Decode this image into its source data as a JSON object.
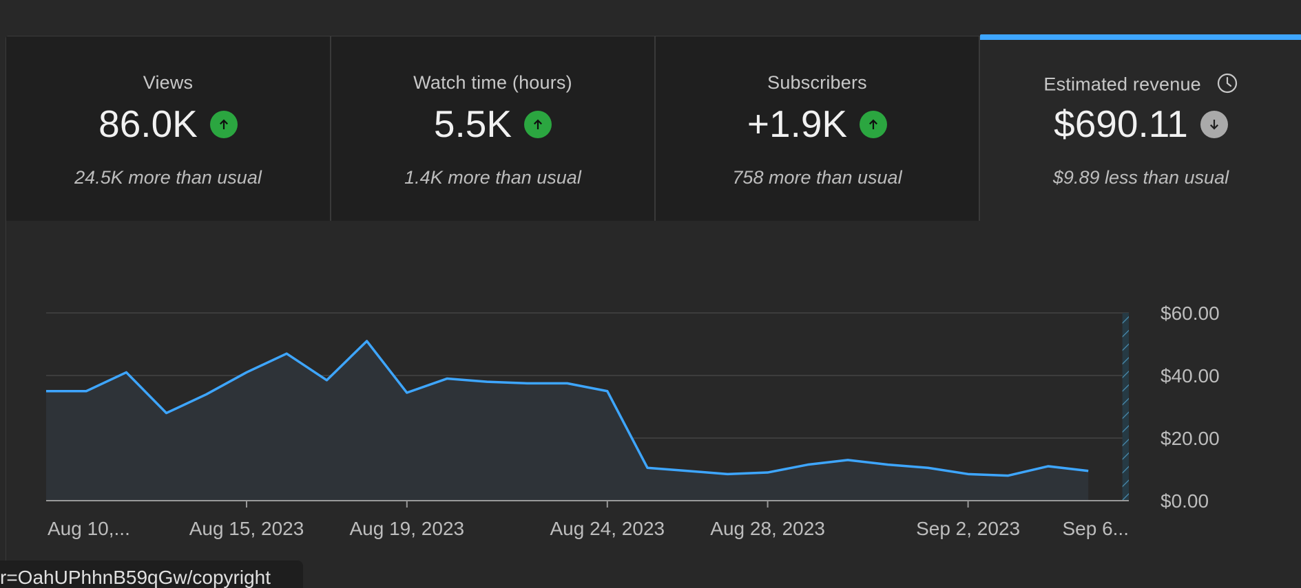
{
  "cards": [
    {
      "label": "Views",
      "value": "86.0K",
      "trend": "up",
      "note": "24.5K more than usual"
    },
    {
      "label": "Watch time (hours)",
      "value": "5.5K",
      "trend": "up",
      "note": "1.4K more than usual"
    },
    {
      "label": "Subscribers",
      "value": "+1.9K",
      "trend": "up",
      "note": "758 more than usual"
    },
    {
      "label": "Estimated revenue",
      "value": "$690.11",
      "trend": "down",
      "note": "$9.89 less than usual",
      "selected": true
    }
  ],
  "colors": {
    "line": "#3ea6ff",
    "up_badge": "#2ba640",
    "down_badge": "#aaaaaa",
    "selected_tab": "#3ea6ff"
  },
  "icons": {
    "up": "arrow-up-icon",
    "down": "arrow-down-icon",
    "revenue": "clock-icon"
  },
  "chart_data": {
    "type": "area",
    "title": "",
    "xlabel": "",
    "ylabel": "",
    "x": [
      "2023-08-10",
      "2023-08-11",
      "2023-08-12",
      "2023-08-13",
      "2023-08-14",
      "2023-08-15",
      "2023-08-16",
      "2023-08-17",
      "2023-08-18",
      "2023-08-19",
      "2023-08-20",
      "2023-08-21",
      "2023-08-22",
      "2023-08-23",
      "2023-08-24",
      "2023-08-25",
      "2023-08-26",
      "2023-08-27",
      "2023-08-28",
      "2023-08-29",
      "2023-08-30",
      "2023-08-31",
      "2023-09-01",
      "2023-09-02",
      "2023-09-03",
      "2023-09-04",
      "2023-09-05",
      "2023-09-06"
    ],
    "series": [
      {
        "values": [
          35.0,
          35.0,
          41.0,
          28.0,
          34.0,
          41.0,
          47.0,
          38.5,
          51.0,
          34.5,
          39.0,
          38.0,
          37.5,
          37.5,
          35.0,
          10.5,
          9.5,
          8.5,
          9.0,
          11.5,
          13.0,
          11.5,
          10.5,
          8.5,
          8.0,
          11.0,
          9.5,
          null
        ]
      }
    ],
    "ylim": [
      0,
      60
    ],
    "yticks": [
      "$0.00",
      "$20.00",
      "$40.00",
      "$60.00"
    ],
    "xtick_labels": [
      {
        "label": "Aug 10,...",
        "date": "2023-08-10"
      },
      {
        "label": "Aug 15, 2023",
        "date": "2023-08-15"
      },
      {
        "label": "Aug 19, 2023",
        "date": "2023-08-19"
      },
      {
        "label": "Aug 24, 2023",
        "date": "2023-08-24"
      },
      {
        "label": "Aug 28, 2023",
        "date": "2023-08-28"
      },
      {
        "label": "Sep 2, 2023",
        "date": "2023-09-02"
      },
      {
        "label": "Sep 6...",
        "date": "2023-09-06"
      }
    ],
    "hatched_period_date": "2023-09-06",
    "grid": true,
    "legend": "none",
    "y_axis_position": "right"
  },
  "tooltip_url": "r=OahUPhhnB59qGw/copyright"
}
